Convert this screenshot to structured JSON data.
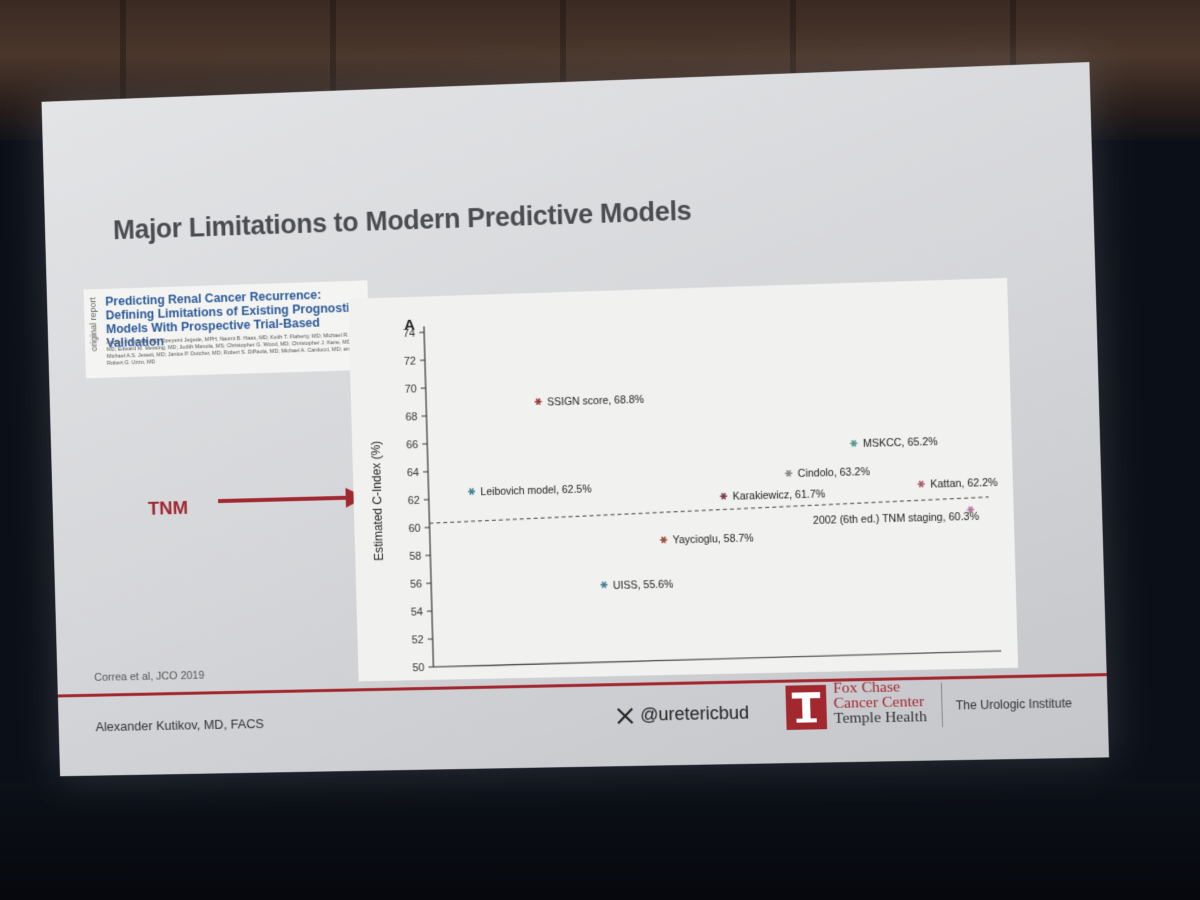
{
  "slide": {
    "title": "Major Limitations to Modern Predictive Models",
    "paper_title": "Predicting Renal Cancer Recurrence: Defining Limitations of Existing Prognostic Models With Prospective Trial-Based Validation",
    "paper_side_label": "original report",
    "paper_authors": "Andres F. Correa, MD; Opeyemi Jegede, MPH; Naomi B. Haas, MD; Keith T. Flaherty, MD; Michael R. Pins, MD; Edward M. Messing, MD; Judith Manola, MS; Christopher G. Wood, MD; Christopher J. Kane, MD; Michael A.S. Jewett, MD; Janice P. Dutcher, MD; Robert S. DiPaola, MD; Michael A. Carducci, MD; and Robert G. Uzzo, MD",
    "panel_letter": "A",
    "tnm_label": "TNM",
    "citation": "Correa et al, JCO 2019",
    "footer_author": "Alexander Kutikov, MD, FACS",
    "handle": "@uretericbud",
    "org_line1": "Fox Chase",
    "org_line2": "Cancer Center",
    "org_line3": "Temple Health",
    "institute": "The Urologic Institute",
    "accent_color": "#a2272f"
  },
  "chart_data": {
    "type": "scatter",
    "ylabel": "Estimated C-Index (%)",
    "xlabel": "",
    "ylim": [
      50,
      74
    ],
    "yticks": [
      50,
      52,
      54,
      56,
      58,
      60,
      62,
      64,
      66,
      68,
      70,
      72,
      74
    ],
    "reference_line": {
      "label": "2002 (6th ed.) TNM staging, 60.3%",
      "value": 60.3
    },
    "points": [
      {
        "label": "Leibovich model, 62.5%",
        "x": 1,
        "y": 62.5,
        "color": "#3f7f95"
      },
      {
        "label": "SSIGN score, 68.8%",
        "x": 2.6,
        "y": 68.8,
        "color": "#9a3a3a"
      },
      {
        "label": "UISS, 55.6%",
        "x": 4,
        "y": 55.6,
        "color": "#3f7f95"
      },
      {
        "label": "Yaycioglu, 58.7%",
        "x": 5.4,
        "y": 58.7,
        "color": "#9a4a3a"
      },
      {
        "label": "Karakiewicz, 61.7%",
        "x": 6.8,
        "y": 61.7,
        "color": "#7a3a4a"
      },
      {
        "label": "Cindolo, 63.2%",
        "x": 8.3,
        "y": 63.2,
        "color": "#888888"
      },
      {
        "label": "MSKCC, 65.2%",
        "x": 9.8,
        "y": 65.2,
        "color": "#4a9a8a"
      },
      {
        "label": "Kattan, 62.2%",
        "x": 11.3,
        "y": 62.2,
        "color": "#b05a6a"
      },
      {
        "label": "",
        "x": 12.4,
        "y": 60.3,
        "color": "#b07a9a"
      }
    ]
  }
}
